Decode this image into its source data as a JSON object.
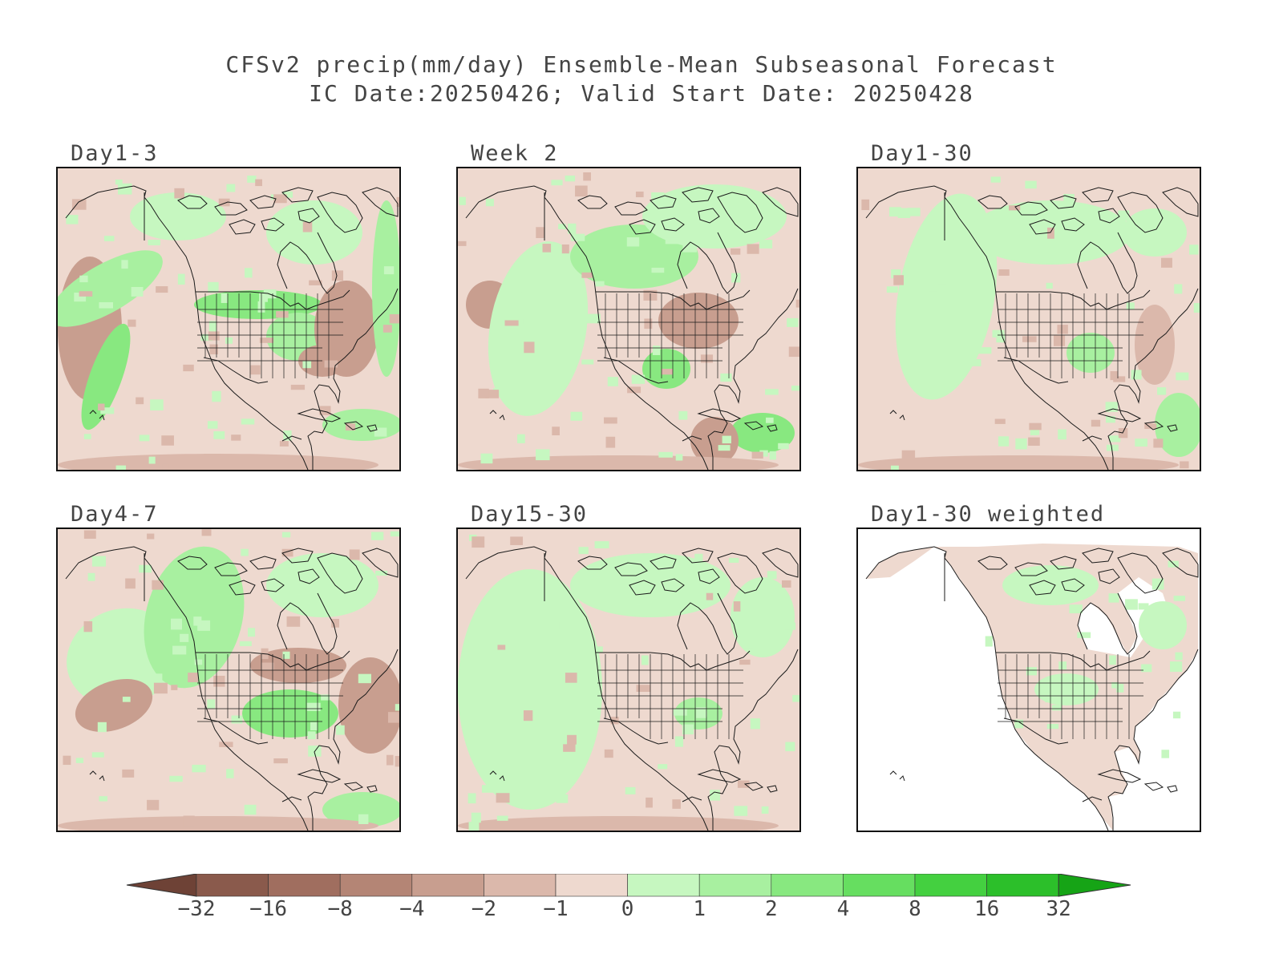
{
  "title": {
    "line1": "CFSv2 precip(mm/day) Ensemble-Mean Subseasonal Forecast",
    "line2": "IC Date:20250426; Valid Start Date: 20250428"
  },
  "panels": [
    {
      "label": "Day1-3",
      "variant": "d13"
    },
    {
      "label": "Week 2",
      "variant": "w2"
    },
    {
      "label": "Day1-30",
      "variant": "d130"
    },
    {
      "label": "Day4-7",
      "variant": "d47"
    },
    {
      "label": "Day15-30",
      "variant": "d1530"
    },
    {
      "label": "Day1-30 weighted",
      "variant": "weighted"
    }
  ],
  "colorbar": {
    "tick_labels": [
      "-32",
      "-16",
      "-8",
      "-4",
      "-2",
      "-1",
      "0",
      "1",
      "2",
      "4",
      "8",
      "16",
      "32"
    ],
    "colors": {
      "below_min": "#6e4236",
      "bins": [
        "#8a5a4c",
        "#a06e5f",
        "#b48575",
        "#c89e8f",
        "#dbb8ab",
        "#eed9cf",
        "#c6f7c0",
        "#a8f0a0",
        "#88e880",
        "#66de60",
        "#44d040",
        "#2cbf2a"
      ],
      "above_max": "#16a416"
    }
  },
  "map_colors": {
    "dry_light": "#eed9cf",
    "dry_mid": "#dbb8ab",
    "dry_dark": "#c89e8f",
    "dry_deep": "#b48575",
    "wet_light": "#c6f7c0",
    "wet_mid": "#a8f0a0",
    "wet_strong": "#88e880",
    "wet_deep": "#66de60",
    "no_data": "#ffffff"
  }
}
